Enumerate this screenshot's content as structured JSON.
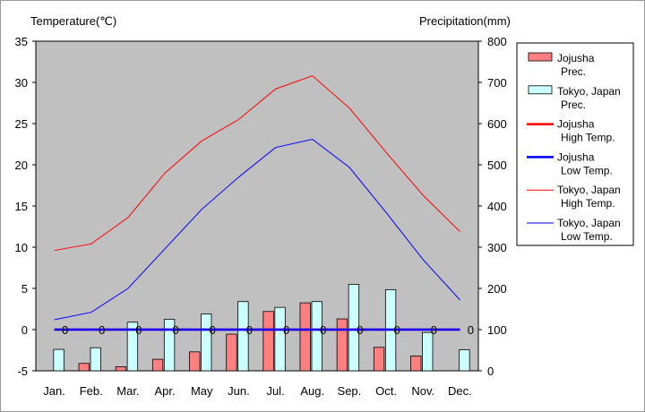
{
  "chart_data": {
    "type": "bar",
    "left_axis_title": "Temperature(℃)",
    "right_axis_title": "Precipitation(mm)",
    "categories": [
      "Jan.",
      "Feb.",
      "Mar.",
      "Apr.",
      "May",
      "Jun.",
      "Jul.",
      "Aug.",
      "Sep.",
      "Oct.",
      "Nov.",
      "Dec."
    ],
    "y_left": {
      "min": -5,
      "max": 35,
      "ticks": [
        "35",
        "30",
        "25",
        "20",
        "15",
        "10",
        "5",
        "0",
        "-5"
      ]
    },
    "y_right": {
      "min": 0,
      "max": 800,
      "ticks": [
        "800",
        "700",
        "600",
        "500",
        "400",
        "300",
        "200",
        "100",
        "0"
      ]
    },
    "bar_series": [
      {
        "name_line1": "Jojusha",
        "name_line2": "Prec.",
        "color": "#ff8080",
        "values": [
          0,
          18,
          10,
          28,
          46,
          89,
          144,
          165,
          126,
          57,
          36,
          0
        ]
      },
      {
        "name_line1": "Tokyo, Japan",
        "name_line2": "Prec.",
        "color": "#ccffff",
        "values": [
          52,
          56,
          118,
          125,
          138,
          168,
          154,
          168,
          210,
          197,
          93,
          51
        ]
      }
    ],
    "line_series": [
      {
        "name_line1": "Jojusha",
        "name_line2": "High Temp.",
        "color": "#ff0000",
        "width": 2.5,
        "values": [
          0,
          0,
          0,
          0,
          0,
          0,
          0,
          0,
          0,
          0,
          0,
          0
        ]
      },
      {
        "name_line1": "Jojusha",
        "name_line2": "Low Temp.",
        "color": "#0000ff",
        "width": 2.5,
        "values": [
          0,
          0,
          0,
          0,
          0,
          0,
          0,
          0,
          0,
          0,
          0,
          0
        ]
      },
      {
        "name_line1": "Tokyo, Japan",
        "name_line2": "High Temp.",
        "color": "#ff0000",
        "width": 1,
        "values": [
          9.6,
          10.4,
          13.6,
          19.0,
          22.9,
          25.5,
          29.2,
          30.8,
          26.9,
          21.5,
          16.3,
          11.9
        ]
      },
      {
        "name_line1": "Tokyo, Japan",
        "name_line2": "Low Temp.",
        "color": "#0000ff",
        "width": 1,
        "values": [
          1.2,
          2.1,
          5.0,
          9.8,
          14.6,
          18.5,
          22.1,
          23.1,
          19.7,
          14.2,
          8.5,
          3.6
        ]
      }
    ],
    "zero_labels": [
      "0",
      "0",
      "0",
      "0",
      "0",
      "0",
      "0",
      "0",
      "0",
      "0",
      "0",
      "0"
    ],
    "plot_background": "#c0c0c0",
    "legend_position": "right",
    "grid": false
  }
}
